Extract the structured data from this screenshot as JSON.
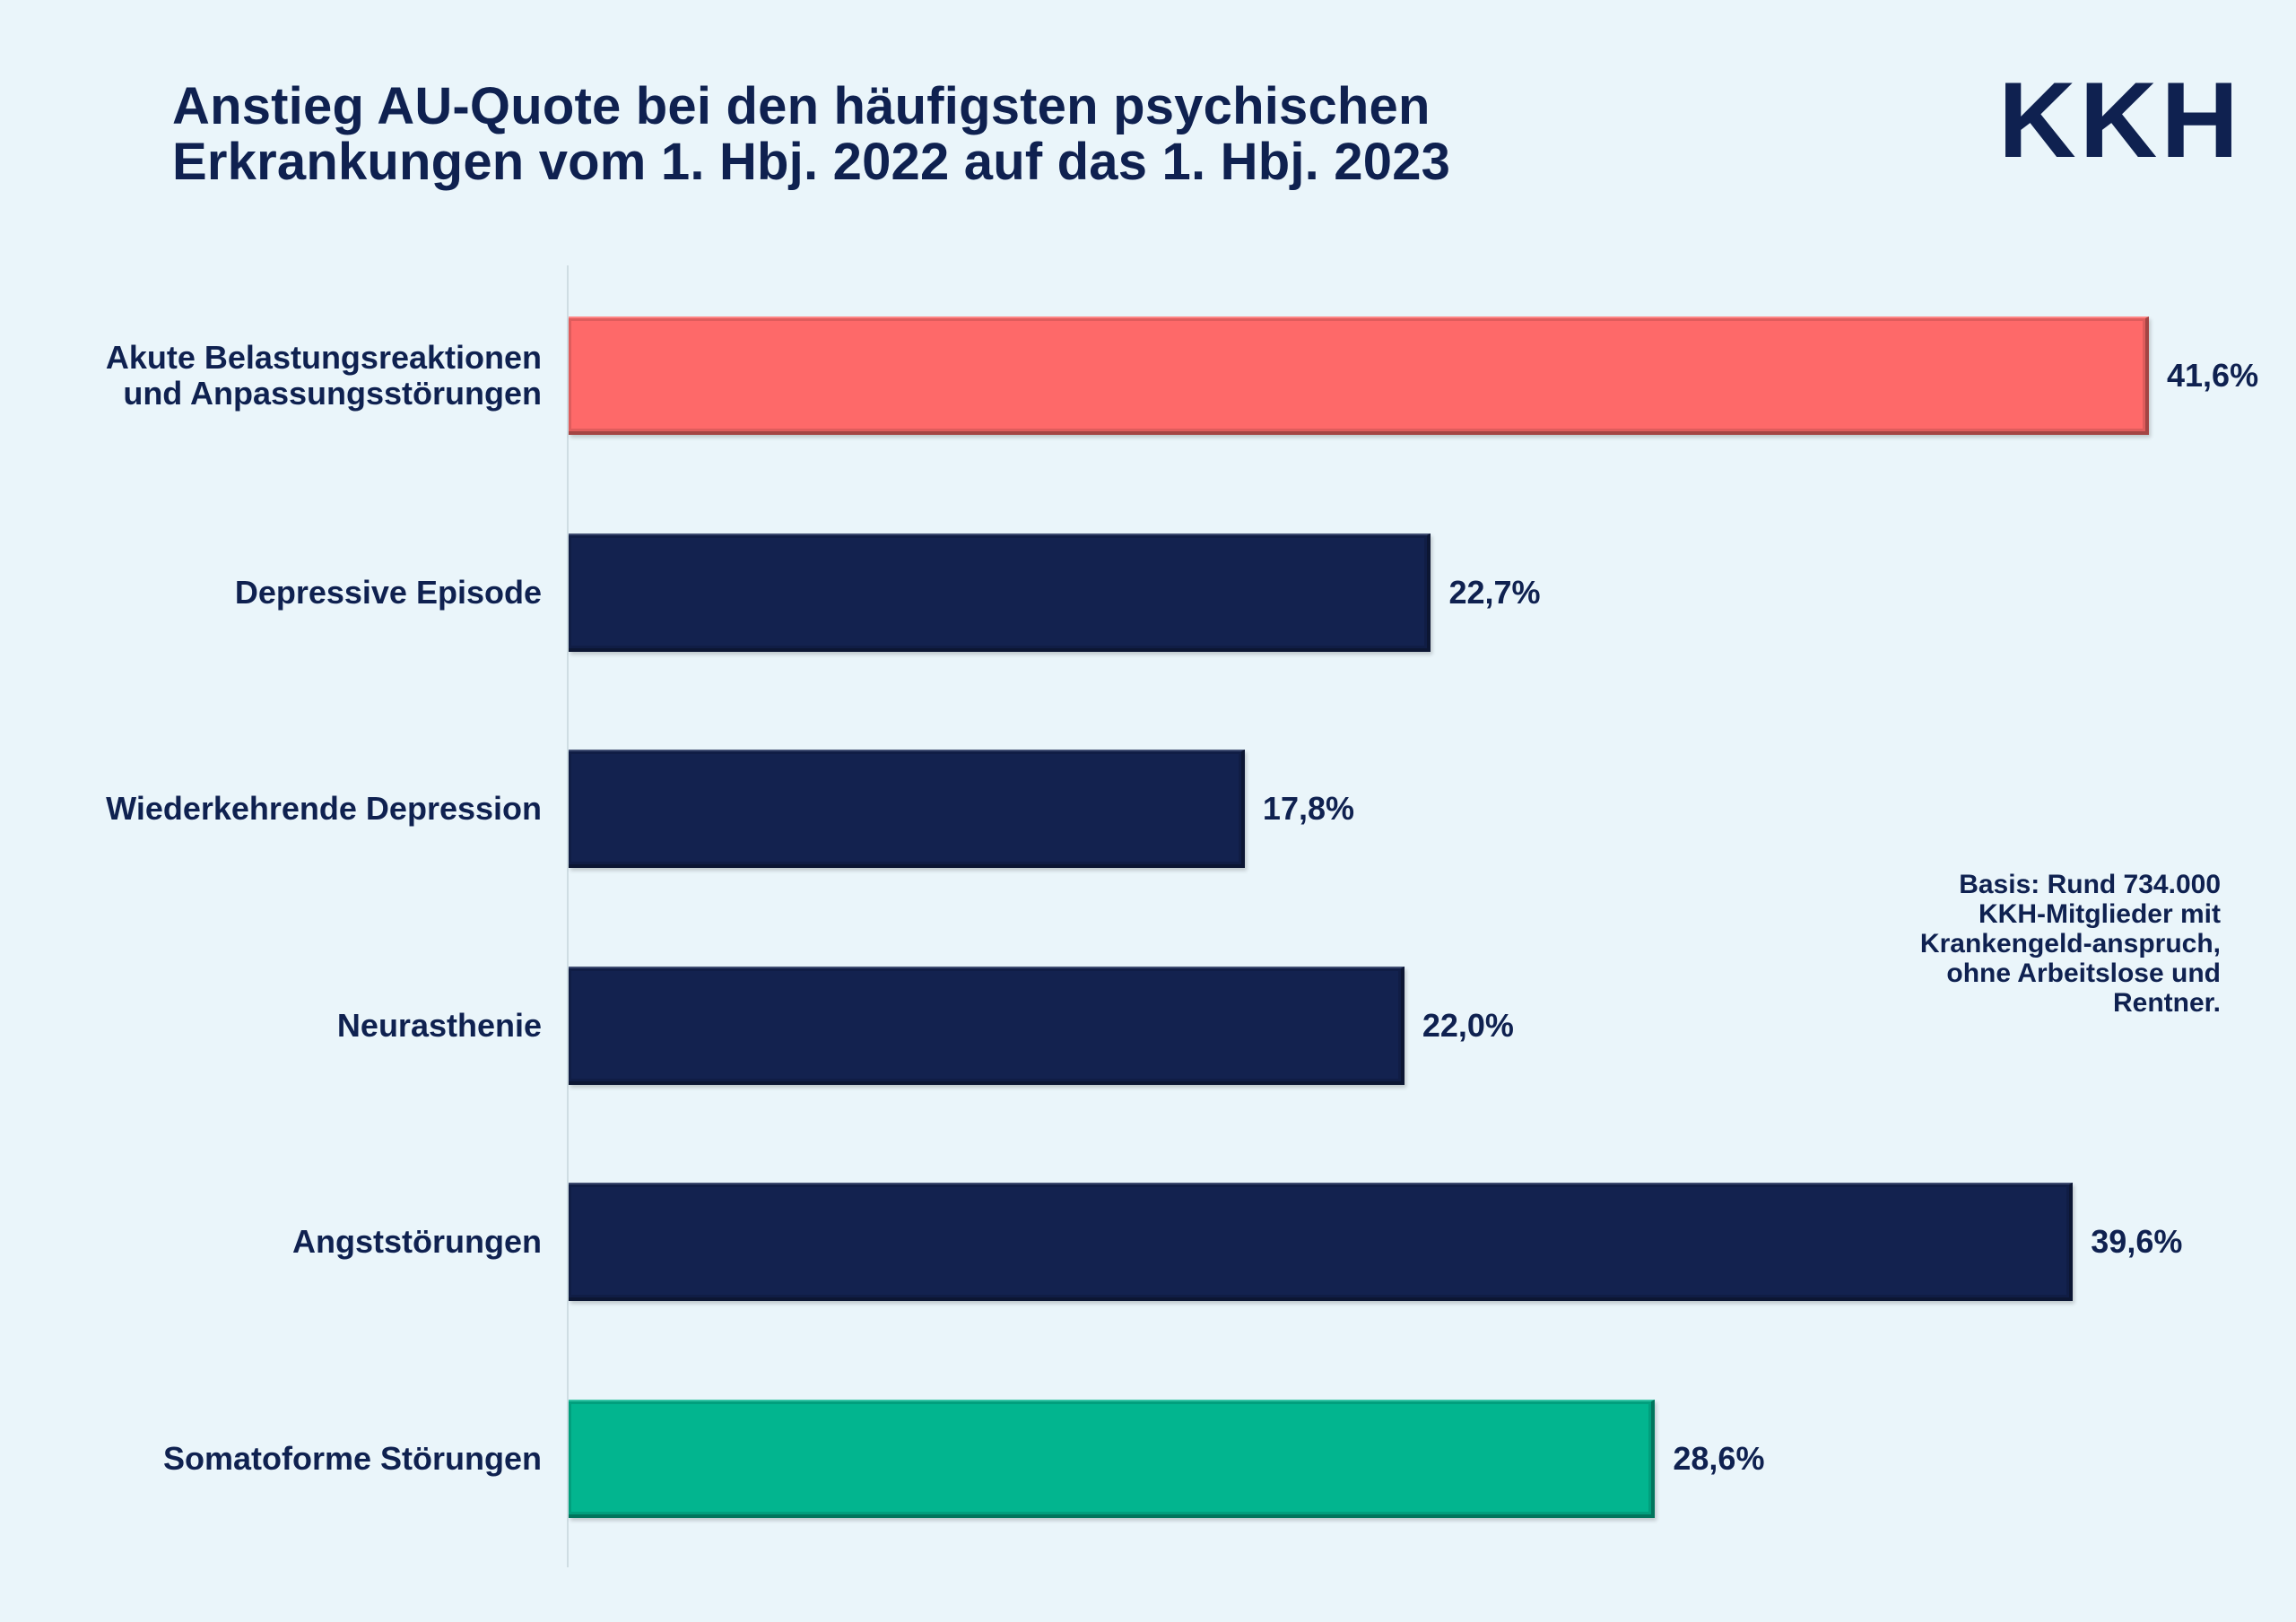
{
  "header": {
    "title_line1": "Anstieg AU-Quote bei den häufigsten psychischen",
    "title_line2": "Erkrankungen vom 1. Hbj. 2022 auf das 1. Hbj. 2023",
    "logo_text": "KKH"
  },
  "note": {
    "lines": [
      "Basis: Rund 734.000",
      "KKH-Mitglieder mit",
      "Krankengeld-anspruch,",
      "ohne Arbeitslose und",
      "Rentner."
    ]
  },
  "colors": {
    "background": "#eaf5fa",
    "text": "#0f2150",
    "bar_default": "#13224f",
    "bar_highlight_red": "#fe6969",
    "bar_highlight_green": "#02b58f"
  },
  "chart_data": {
    "type": "bar",
    "orientation": "horizontal",
    "title": "Anstieg AU-Quote bei den häufigsten psychischen Erkrankungen vom 1. Hbj. 2022 auf das 1. Hbj. 2023",
    "categories": [
      [
        "Akute Belastungsreaktionen",
        "und Anpassungsstörungen"
      ],
      [
        "Depressive Episode"
      ],
      [
        "Wiederkehrende Depression"
      ],
      [
        "Neurasthenie"
      ],
      [
        "Angststörungen"
      ],
      [
        "Somatoforme Störungen"
      ]
    ],
    "values": [
      41.6,
      22.7,
      17.8,
      22.0,
      39.6,
      28.6
    ],
    "value_labels": [
      "41,6%",
      "22,7%",
      "17,8%",
      "22,0%",
      "39,6%",
      "28,6%"
    ],
    "bar_colors": [
      "#fe6969",
      "#13224f",
      "#13224f",
      "#13224f",
      "#13224f",
      "#02b58f"
    ],
    "unit": "%",
    "xlim": [
      0,
      41.6
    ],
    "grid": false,
    "legend": "none"
  }
}
